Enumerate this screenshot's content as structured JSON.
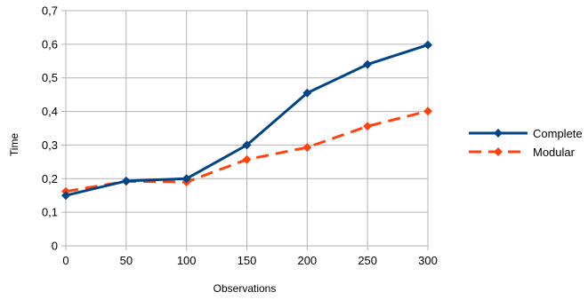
{
  "chart_data": {
    "type": "line",
    "title": "",
    "xlabel": "Observations",
    "ylabel": "Time",
    "x": [
      0,
      50,
      100,
      150,
      200,
      250,
      300
    ],
    "xlim": [
      0,
      300
    ],
    "ylim": [
      0,
      0.7
    ],
    "x_ticks": [
      "0",
      "50",
      "100",
      "150",
      "200",
      "250",
      "300"
    ],
    "y_ticks": [
      "0",
      "0,1",
      "0,2",
      "0,3",
      "0,4",
      "0,5",
      "0,6",
      "0,7"
    ],
    "grid": true,
    "legend_position": "right",
    "series": [
      {
        "name": "Complete",
        "values": [
          0.15,
          0.193,
          0.2,
          0.3,
          0.455,
          0.54,
          0.598
        ],
        "color": "#004586",
        "style": "solid",
        "marker": "diamond"
      },
      {
        "name": "Modular",
        "values": [
          0.162,
          0.192,
          0.19,
          0.257,
          0.293,
          0.356,
          0.401
        ],
        "color": "#ff420e",
        "style": "dashed",
        "marker": "diamond"
      }
    ]
  }
}
